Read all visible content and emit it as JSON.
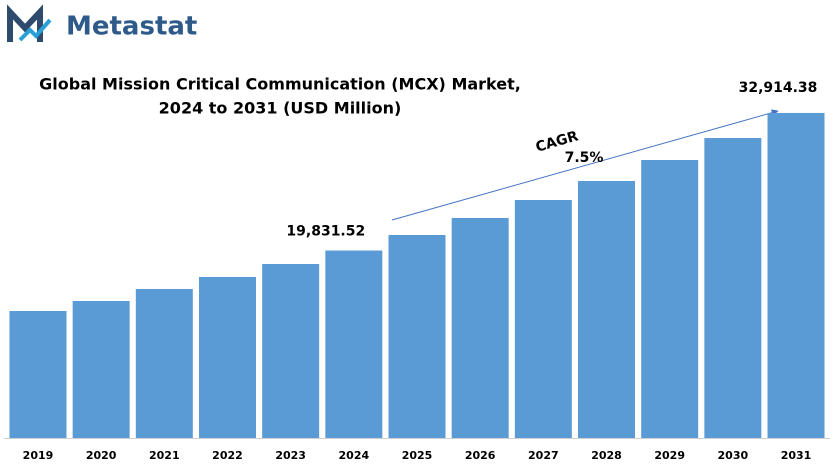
{
  "brand": "Metastat",
  "chart_data": {
    "type": "bar",
    "title": [
      "Global Mission Critical Communication (MCX) Market,",
      "2024 to 2031 (USD Million)"
    ],
    "categories": [
      "2019",
      "2020",
      "2021",
      "2022",
      "2023",
      "2024",
      "2025",
      "2026",
      "2027",
      "2028",
      "2029",
      "2030",
      "2031"
    ],
    "values": [
      14078,
      15029,
      16171,
      17312,
      18548,
      19831.52,
      21306,
      22923,
      24635,
      26442,
      28439,
      30531,
      32914.38
    ],
    "value_labels": [
      null,
      null,
      null,
      null,
      null,
      "19,831.52",
      null,
      null,
      null,
      null,
      null,
      null,
      "32,914.38"
    ],
    "color": "#5b9bd5",
    "ylim": [
      2000,
      36000
    ],
    "annotations": [
      "CAGR",
      "7.5%"
    ]
  }
}
